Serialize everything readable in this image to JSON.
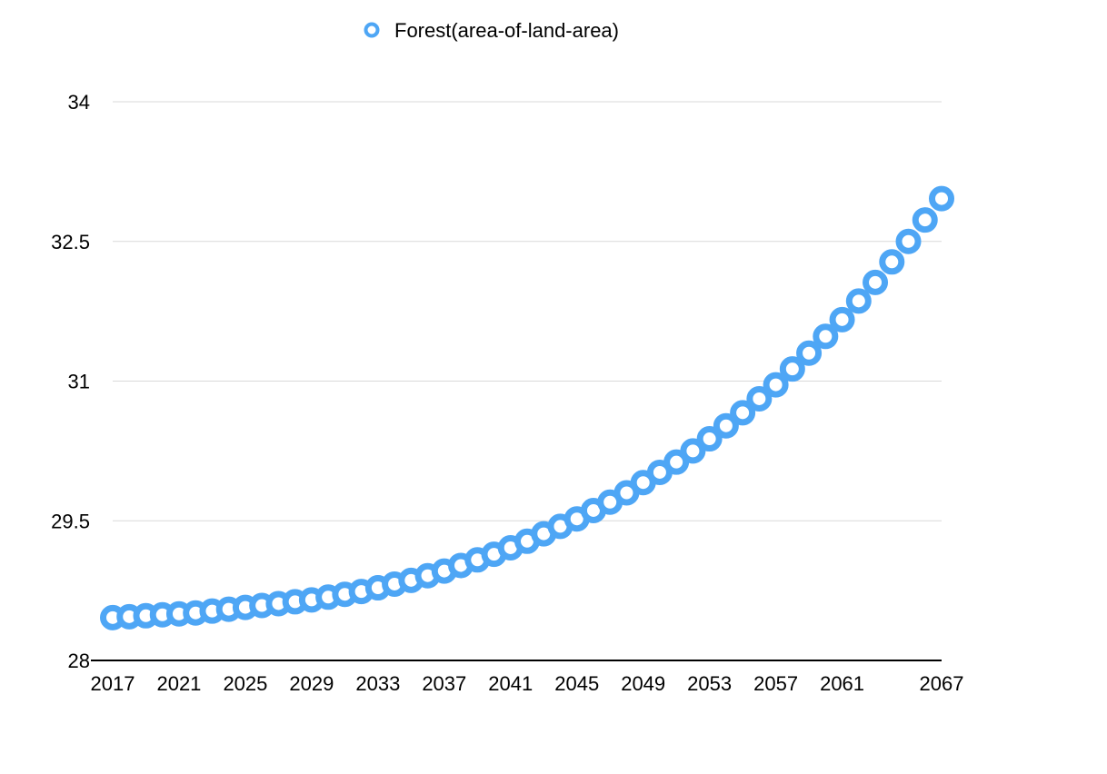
{
  "chart_data": {
    "type": "scatter",
    "title": "",
    "xlabel": "",
    "ylabel": "",
    "xlim": [
      2017,
      2067
    ],
    "ylim": [
      28,
      34
    ],
    "x_ticks": [
      "2017",
      "2021",
      "2025",
      "2029",
      "2033",
      "2037",
      "2041",
      "2045",
      "2049",
      "2053",
      "2057",
      "2061",
      "2067"
    ],
    "y_ticks": [
      "28",
      "29.5",
      "31",
      "32.5",
      "34"
    ],
    "grid": true,
    "legend_position": "top",
    "series": [
      {
        "name": "Forest(area-of-land-area)",
        "color": "#4ea6f5",
        "x": [
          2017,
          2018,
          2019,
          2020,
          2021,
          2022,
          2023,
          2024,
          2025,
          2026,
          2027,
          2028,
          2029,
          2030,
          2031,
          2032,
          2033,
          2034,
          2035,
          2036,
          2037,
          2038,
          2039,
          2040,
          2041,
          2042,
          2043,
          2044,
          2045,
          2046,
          2047,
          2048,
          2049,
          2050,
          2051,
          2052,
          2053,
          2054,
          2055,
          2056,
          2057,
          2058,
          2059,
          2060,
          2061,
          2062,
          2063,
          2064,
          2065,
          2066,
          2067
        ],
        "y": [
          28.46,
          28.47,
          28.48,
          28.49,
          28.5,
          28.51,
          28.53,
          28.55,
          28.57,
          28.59,
          28.61,
          28.63,
          28.65,
          28.68,
          28.71,
          28.74,
          28.78,
          28.82,
          28.86,
          28.91,
          28.96,
          29.02,
          29.08,
          29.14,
          29.21,
          29.28,
          29.36,
          29.44,
          29.52,
          29.61,
          29.7,
          29.8,
          29.91,
          30.02,
          30.13,
          30.25,
          30.38,
          30.52,
          30.66,
          30.81,
          30.96,
          31.13,
          31.3,
          31.48,
          31.66,
          31.86,
          32.06,
          32.28,
          32.5,
          32.73,
          32.96
        ]
      }
    ]
  }
}
